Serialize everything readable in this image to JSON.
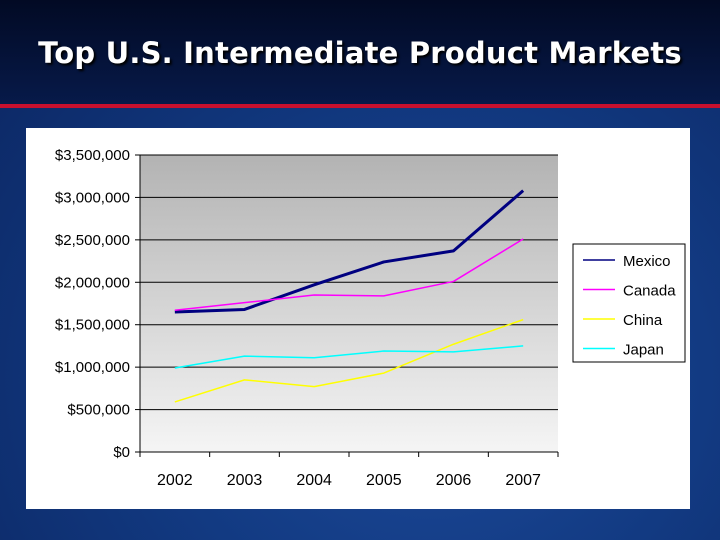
{
  "slide": {
    "title": "Top U.S. Intermediate Product Markets"
  },
  "chart_data": {
    "type": "line",
    "title": "",
    "xlabel": "",
    "ylabel": "",
    "categories": [
      "2002",
      "2003",
      "2004",
      "2005",
      "2006",
      "2007"
    ],
    "ylim": [
      0,
      3500000
    ],
    "yticks": [
      0,
      500000,
      1000000,
      1500000,
      2000000,
      2500000,
      3000000,
      3500000
    ],
    "ytick_labels": [
      "$0",
      "$500,000",
      "$1,000,000",
      "$1,500,000",
      "$2,000,000",
      "$2,500,000",
      "$3,000,000",
      "$3,500,000"
    ],
    "grid": true,
    "legend": "right",
    "series": [
      {
        "name": "Mexico",
        "color": "#000080",
        "values": [
          1650000,
          1680000,
          1970000,
          2240000,
          2370000,
          3080000
        ]
      },
      {
        "name": "Canada",
        "color": "#ff00ff",
        "values": [
          1670000,
          1760000,
          1850000,
          1840000,
          2010000,
          2510000
        ]
      },
      {
        "name": "China",
        "color": "#ffff00",
        "values": [
          590000,
          850000,
          770000,
          930000,
          1270000,
          1560000
        ]
      },
      {
        "name": "Japan",
        "color": "#00ffff",
        "values": [
          990000,
          1130000,
          1110000,
          1190000,
          1180000,
          1250000
        ]
      }
    ]
  }
}
